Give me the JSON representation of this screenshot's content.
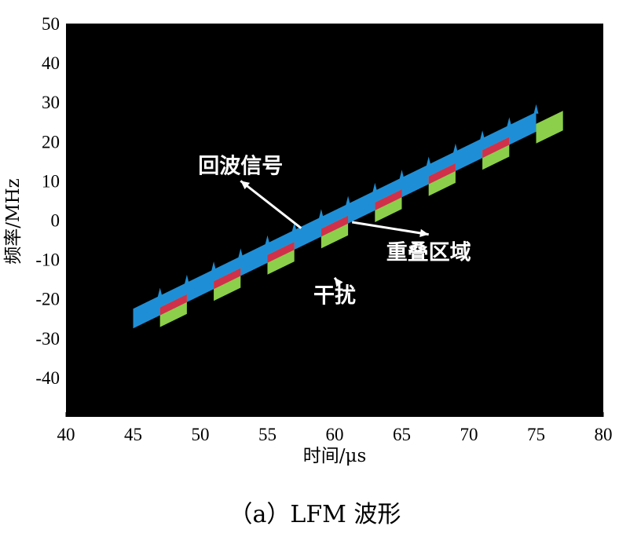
{
  "chart_data": {
    "type": "area",
    "xlabel": "时间/μs",
    "ylabel": "频率/MHz",
    "caption": "（a）LFM 波形",
    "xlim": [
      40,
      80
    ],
    "ylim": [
      -50,
      50
    ],
    "xticks": [
      40,
      45,
      50,
      55,
      60,
      65,
      70,
      75,
      80
    ],
    "yticks": [
      50,
      40,
      30,
      20,
      10,
      0,
      -10,
      -20,
      -30,
      -40
    ],
    "grid": false,
    "background": "#000000",
    "colors": {
      "echo": "#1e8fd6",
      "jamming": "#8ccf4a",
      "overlap": "#d0304a"
    },
    "series": [
      {
        "name": "回波信号",
        "x_start": 45,
        "x_end": 75,
        "y_start": -25,
        "y_end": 25,
        "bandwidth": 5
      },
      {
        "name": "干扰",
        "pulses": [
          {
            "x_start": 47,
            "x_end": 49
          },
          {
            "x_start": 51,
            "x_end": 53
          },
          {
            "x_start": 55,
            "x_end": 57
          },
          {
            "x_start": 59,
            "x_end": 61
          },
          {
            "x_start": 63,
            "x_end": 65
          },
          {
            "x_start": 67,
            "x_end": 69
          },
          {
            "x_start": 71,
            "x_end": 73
          },
          {
            "x_start": 75,
            "x_end": 77
          }
        ],
        "offset": -3,
        "bandwidth": 5
      },
      {
        "name": "重叠区域"
      }
    ],
    "annotations": [
      {
        "text": "回波信号",
        "x": 53,
        "y": 12,
        "arrow_to": [
          57.5,
          -2
        ]
      },
      {
        "text": "干扰",
        "x": 60,
        "y": -21,
        "arrow_to": [
          60.3,
          -16
        ]
      },
      {
        "text": "重叠区域",
        "x": 67,
        "y": -10,
        "arrow_to": [
          61.3,
          -0.5
        ]
      }
    ]
  }
}
